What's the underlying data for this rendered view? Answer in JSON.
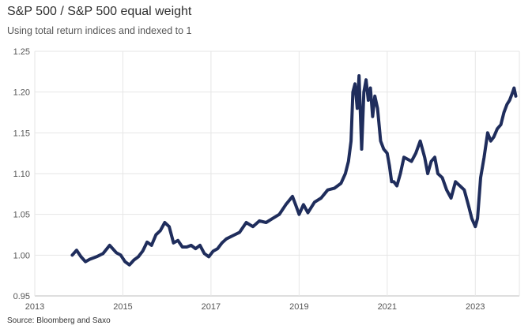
{
  "header": {
    "title": "S&P 500 / S&P 500 equal weight",
    "subtitle": "Using total return indices and indexed to 1"
  },
  "footer": {
    "source": "Source: Bloomberg and Saxo"
  },
  "colors": {
    "line": "#1f2d5c",
    "grid": "#e6e6e6",
    "axis": "#bdbdbd"
  },
  "chart_data": {
    "type": "line",
    "title": "S&P 500 / S&P 500 equal weight",
    "subtitle": "Using total return indices and indexed to 1",
    "xlabel": "",
    "ylabel": "",
    "xlim": [
      2013,
      2024
    ],
    "ylim": [
      0.95,
      1.25
    ],
    "x_ticks": [
      "2013",
      "2015",
      "2017",
      "2019",
      "2021",
      "2023"
    ],
    "x_tick_values": [
      2013,
      2015,
      2017,
      2019,
      2021,
      2023
    ],
    "y_ticks": [
      "0.95",
      "1.00",
      "1.05",
      "1.10",
      "1.15",
      "1.20",
      "1.25"
    ],
    "y_tick_values": [
      0.95,
      1.0,
      1.05,
      1.1,
      1.15,
      1.2,
      1.25
    ],
    "grid": "vertical and horizontal",
    "series": [
      {
        "x": [
          2013.85,
          2013.95,
          2014.05,
          2014.15,
          2014.25,
          2014.4,
          2014.55,
          2014.7,
          2014.85,
          2014.95,
          2015.05,
          2015.15,
          2015.25,
          2015.35,
          2015.45,
          2015.55,
          2015.65,
          2015.75,
          2015.85,
          2015.95,
          2016.05,
          2016.15,
          2016.25,
          2016.35,
          2016.45,
          2016.55,
          2016.65,
          2016.75,
          2016.85,
          2016.95,
          2017.05,
          2017.15,
          2017.25,
          2017.35,
          2017.5,
          2017.65,
          2017.8,
          2017.95,
          2018.1,
          2018.25,
          2018.4,
          2018.55,
          2018.7,
          2018.85,
          2018.92,
          2019.0,
          2019.1,
          2019.2,
          2019.35,
          2019.5,
          2019.65,
          2019.8,
          2019.95,
          2020.05,
          2020.12,
          2020.18,
          2020.22,
          2020.27,
          2020.32,
          2020.36,
          2020.42,
          2020.47,
          2020.52,
          2020.57,
          2020.62,
          2020.67,
          2020.72,
          2020.78,
          2020.85,
          2020.92,
          2021.0,
          2021.05,
          2021.1,
          2021.15,
          2021.22,
          2021.3,
          2021.38,
          2021.45,
          2021.55,
          2021.65,
          2021.75,
          2021.85,
          2021.92,
          2022.0,
          2022.08,
          2022.15,
          2022.25,
          2022.35,
          2022.45,
          2022.55,
          2022.65,
          2022.75,
          2022.85,
          2022.92,
          2023.0,
          2023.05,
          2023.12,
          2023.2,
          2023.28,
          2023.35,
          2023.42,
          2023.5,
          2023.58,
          2023.65,
          2023.72,
          2023.78,
          2023.85,
          2023.88,
          2023.92
        ],
        "values": [
          1.0,
          1.006,
          0.998,
          0.992,
          0.995,
          0.998,
          1.002,
          1.012,
          1.003,
          1.0,
          0.992,
          0.988,
          0.994,
          0.998,
          1.005,
          1.016,
          1.012,
          1.025,
          1.03,
          1.04,
          1.035,
          1.015,
          1.018,
          1.01,
          1.01,
          1.012,
          1.008,
          1.012,
          1.002,
          0.998,
          1.005,
          1.008,
          1.015,
          1.02,
          1.024,
          1.028,
          1.04,
          1.035,
          1.042,
          1.04,
          1.045,
          1.05,
          1.062,
          1.072,
          1.062,
          1.05,
          1.062,
          1.052,
          1.065,
          1.07,
          1.08,
          1.082,
          1.088,
          1.1,
          1.115,
          1.14,
          1.2,
          1.21,
          1.18,
          1.22,
          1.13,
          1.2,
          1.215,
          1.19,
          1.205,
          1.17,
          1.195,
          1.18,
          1.14,
          1.13,
          1.125,
          1.11,
          1.09,
          1.09,
          1.085,
          1.1,
          1.12,
          1.118,
          1.115,
          1.125,
          1.14,
          1.12,
          1.1,
          1.115,
          1.12,
          1.1,
          1.095,
          1.08,
          1.07,
          1.09,
          1.085,
          1.08,
          1.06,
          1.045,
          1.035,
          1.045,
          1.095,
          1.12,
          1.15,
          1.14,
          1.145,
          1.155,
          1.16,
          1.175,
          1.185,
          1.19,
          1.2,
          1.205,
          1.195
        ]
      }
    ]
  }
}
